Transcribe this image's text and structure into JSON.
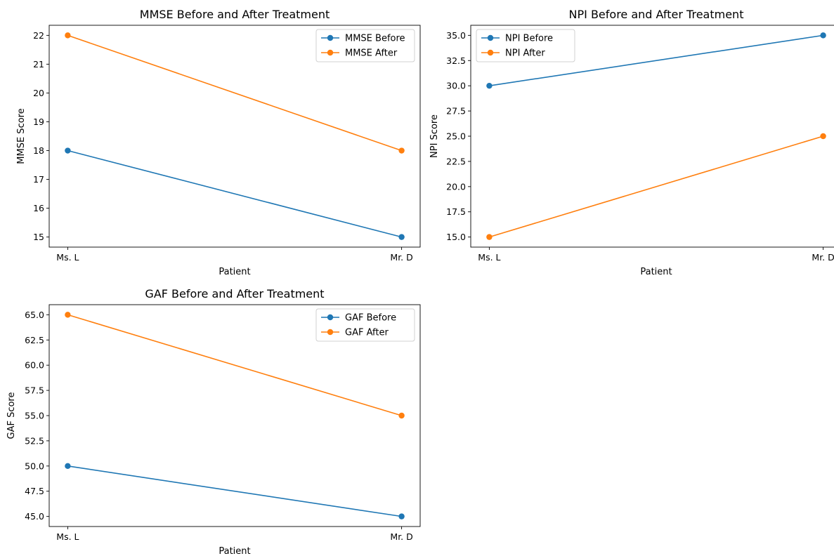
{
  "chart_data": [
    {
      "type": "line",
      "title": "MMSE Before and After Treatment",
      "xlabel": "Patient",
      "ylabel": "MMSE Score",
      "categories": [
        "Ms. L",
        "Mr. D"
      ],
      "ylim": [
        14.65,
        22.35
      ],
      "yticks": [
        15,
        16,
        17,
        18,
        19,
        20,
        21,
        22
      ],
      "ytick_labels": [
        "15",
        "16",
        "17",
        "18",
        "19",
        "20",
        "21",
        "22"
      ],
      "legend_position": "top-right",
      "grid": false,
      "series": [
        {
          "name": "MMSE Before",
          "values": [
            18,
            15
          ],
          "color": "#1f77b4"
        },
        {
          "name": "MMSE After",
          "values": [
            22,
            18
          ],
          "color": "#ff7f0e"
        }
      ]
    },
    {
      "type": "line",
      "title": "NPI Before and After Treatment",
      "xlabel": "Patient",
      "ylabel": "NPI Score",
      "categories": [
        "Ms. L",
        "Mr. D"
      ],
      "ylim": [
        14.0,
        36.0
      ],
      "yticks": [
        15,
        17.5,
        20,
        22.5,
        25,
        27.5,
        30,
        32.5,
        35
      ],
      "ytick_labels": [
        "15.0",
        "17.5",
        "20.0",
        "22.5",
        "25.0",
        "27.5",
        "30.0",
        "32.5",
        "35.0"
      ],
      "legend_position": "top-left",
      "grid": false,
      "series": [
        {
          "name": "NPI Before",
          "values": [
            30,
            35
          ],
          "color": "#1f77b4"
        },
        {
          "name": "NPI After",
          "values": [
            15,
            25
          ],
          "color": "#ff7f0e"
        }
      ]
    },
    {
      "type": "line",
      "title": "GAF Before and After Treatment",
      "xlabel": "Patient",
      "ylabel": "GAF Score",
      "categories": [
        "Ms. L",
        "Mr. D"
      ],
      "ylim": [
        44.0,
        66.0
      ],
      "yticks": [
        45,
        47.5,
        50,
        52.5,
        55,
        57.5,
        60,
        62.5,
        65
      ],
      "ytick_labels": [
        "45.0",
        "47.5",
        "50.0",
        "52.5",
        "55.0",
        "57.5",
        "60.0",
        "62.5",
        "65.0"
      ],
      "legend_position": "top-right",
      "grid": false,
      "series": [
        {
          "name": "GAF Before",
          "values": [
            50,
            45
          ],
          "color": "#1f77b4"
        },
        {
          "name": "GAF After",
          "values": [
            65,
            55
          ],
          "color": "#ff7f0e"
        }
      ]
    }
  ]
}
